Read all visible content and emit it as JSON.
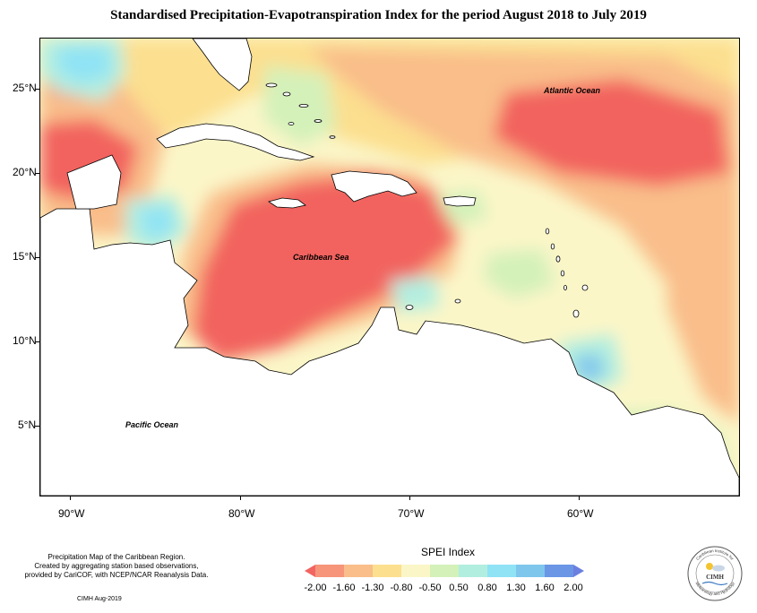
{
  "title": "Standardised Precipitation-Evapotranspiration Index for the period August 2018 to July 2019",
  "map": {
    "labels": {
      "atlantic": "Atlantic Ocean",
      "caribbean": "Caribbean Sea",
      "pacific": "Pacific Ocean"
    },
    "lat_ticks": [
      "25°N",
      "20°N",
      "15°N",
      "10°N",
      "5°N"
    ],
    "lon_ticks": [
      "90°W",
      "80°W",
      "70°W",
      "60°W"
    ],
    "land_color": "#ffffff",
    "coastline_color": "#000000"
  },
  "legend": {
    "title": "SPEI Index",
    "ticks": [
      "-2.00",
      "-1.60",
      "-1.30",
      "-0.80",
      "-0.50",
      "0.50",
      "0.80",
      "1.30",
      "1.60",
      "2.00"
    ],
    "colors": [
      "#f2645f",
      "#f6957a",
      "#f9be8a",
      "#fcdf8f",
      "#fbf6c8",
      "#d4f1ba",
      "#b2eee0",
      "#8fe3f5",
      "#7fc6ec",
      "#6a96e5",
      "#6b7fe0"
    ]
  },
  "footer": {
    "line1": "Precipitation Map of the Caribbean Region.",
    "line2": "Created by aggregating station based observations,",
    "line3": "provided by CariCOF, with NCEP/NCAR Reanalysis Data.",
    "credit": "CIMH Aug-2019"
  },
  "logo": {
    "name": "CIMH",
    "ring_text_top": "Caribbean Institute for",
    "ring_text_bottom": "Meteorology and Hydrology"
  }
}
